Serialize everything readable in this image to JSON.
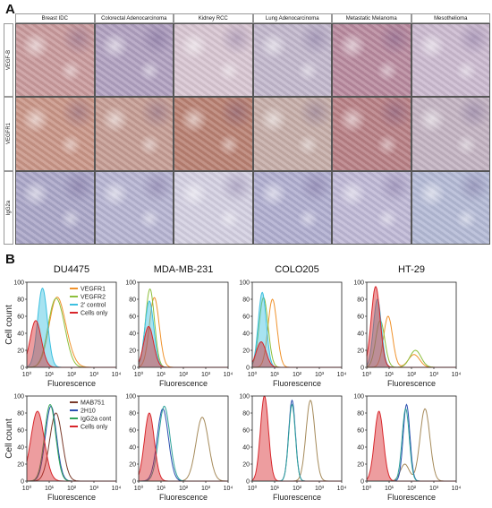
{
  "panel_a": {
    "letter": "A",
    "columns": [
      "Breast IDC",
      "Colorectal Adenocarcinoma",
      "Kidney RCC",
      "Lung Adenocarcinoma",
      "Metastatic Melanoma",
      "Mesothelioma"
    ],
    "rows": [
      "VEGF-B",
      "VEGFR1",
      "IgG2a"
    ],
    "tile_colors": [
      [
        "#c99a9c",
        "#b0a0c0",
        "#d8c6d2",
        "#c2b7cc",
        "#b8899e",
        "#cbbad0"
      ],
      [
        "#c99587",
        "#c59c93",
        "#b98072",
        "#c6ada8",
        "#b87f85",
        "#c3b3c2"
      ],
      [
        "#aaa6c8",
        "#b6b4d2",
        "#d4d0e2",
        "#b0aed0",
        "#bfb8d6",
        "#b4bad6"
      ]
    ]
  },
  "panel_b": {
    "letter": "B",
    "chart_data": [
      {
        "type": "line",
        "title": "DU4475",
        "xlabel": "Fluorescence",
        "ylabel": "Cell count",
        "xscale": "log",
        "xlim": [
          1,
          10000
        ],
        "ylim": [
          0,
          100
        ],
        "x_ticks": [
          "10⁰",
          "10¹",
          "10²",
          "10³",
          "10⁴"
        ],
        "y_ticks": [
          "0",
          "20",
          "40",
          "60",
          "80",
          "100"
        ],
        "legend": "top-right",
        "series": [
          {
            "name": "VEGFR1",
            "color": "#f0922b",
            "filled": false,
            "peaks": [
              {
                "x": 18,
                "y": 58,
                "w": 0.32
              },
              {
                "x": 40,
                "y": 35,
                "w": 0.35
              }
            ]
          },
          {
            "name": "VEGFR2",
            "color": "#8dbf3c",
            "filled": false,
            "peaks": [
              {
                "x": 15,
                "y": 57,
                "w": 0.3
              },
              {
                "x": 35,
                "y": 40,
                "w": 0.3
              }
            ]
          },
          {
            "name": "2' control",
            "color": "#3cc0e0",
            "filled": true,
            "peaks": [
              {
                "x": 5,
                "y": 93,
                "w": 0.22
              }
            ]
          },
          {
            "name": "Cells only",
            "color": "#d8262b",
            "filled": true,
            "peaks": [
              {
                "x": 2.5,
                "y": 55,
                "w": 0.25
              }
            ]
          }
        ]
      },
      {
        "type": "line",
        "title": "MDA-MB-231",
        "xlabel": "Fluorescence",
        "ylabel": "",
        "xscale": "log",
        "xlim": [
          1,
          10000
        ],
        "ylim": [
          0,
          100
        ],
        "x_ticks": [
          "10⁰",
          "10¹",
          "10²",
          "10³",
          "10⁴"
        ],
        "y_ticks": [
          "0",
          "20",
          "40",
          "60",
          "80",
          "100"
        ],
        "series": [
          {
            "name": "VEGFR1",
            "color": "#f0922b",
            "filled": false,
            "peaks": [
              {
                "x": 5,
                "y": 82,
                "w": 0.22
              }
            ]
          },
          {
            "name": "VEGFR2",
            "color": "#8dbf3c",
            "filled": false,
            "peaks": [
              {
                "x": 3.2,
                "y": 92,
                "w": 0.2
              }
            ]
          },
          {
            "name": "2' control",
            "color": "#3cc0e0",
            "filled": true,
            "peaks": [
              {
                "x": 3,
                "y": 78,
                "w": 0.2
              }
            ]
          },
          {
            "name": "Cells only",
            "color": "#d8262b",
            "filled": true,
            "peaks": [
              {
                "x": 2.8,
                "y": 48,
                "w": 0.22
              }
            ]
          }
        ]
      },
      {
        "type": "line",
        "title": "COLO205",
        "xlabel": "Fluorescence",
        "ylabel": "",
        "xscale": "log",
        "xlim": [
          1,
          10000
        ],
        "ylim": [
          0,
          100
        ],
        "x_ticks": [
          "10⁰",
          "10¹",
          "10²",
          "10³",
          "10⁴"
        ],
        "y_ticks": [
          "0",
          "20",
          "40",
          "60",
          "80",
          "100"
        ],
        "series": [
          {
            "name": "VEGFR1",
            "color": "#f0922b",
            "filled": false,
            "peaks": [
              {
                "x": 8,
                "y": 80,
                "w": 0.2
              }
            ]
          },
          {
            "name": "VEGFR2",
            "color": "#8dbf3c",
            "filled": false,
            "peaks": [
              {
                "x": 3.2,
                "y": 82,
                "w": 0.2
              }
            ]
          },
          {
            "name": "2' control",
            "color": "#3cc0e0",
            "filled": true,
            "peaks": [
              {
                "x": 2.8,
                "y": 88,
                "w": 0.18
              }
            ]
          },
          {
            "name": "Cells only",
            "color": "#d8262b",
            "filled": true,
            "peaks": [
              {
                "x": 2.5,
                "y": 30,
                "w": 0.22
              }
            ]
          }
        ]
      },
      {
        "type": "line",
        "title": "HT-29",
        "xlabel": "Fluorescence",
        "ylabel": "",
        "xscale": "log",
        "xlim": [
          1,
          10000
        ],
        "ylim": [
          0,
          100
        ],
        "x_ticks": [
          "10⁰",
          "10¹",
          "10²",
          "10³",
          "10⁴"
        ],
        "y_ticks": [
          "0",
          "20",
          "40",
          "60",
          "80",
          "100"
        ],
        "series": [
          {
            "name": "VEGFR1",
            "color": "#f0922b",
            "filled": false,
            "peaks": [
              {
                "x": 9,
                "y": 60,
                "w": 0.2
              },
              {
                "x": 130,
                "y": 15,
                "w": 0.25
              }
            ]
          },
          {
            "name": "VEGFR2",
            "color": "#8dbf3c",
            "filled": false,
            "peaks": [
              {
                "x": 4,
                "y": 55,
                "w": 0.2
              },
              {
                "x": 150,
                "y": 20,
                "w": 0.25
              }
            ]
          },
          {
            "name": "2' control",
            "color": "#3cc0e0",
            "filled": true,
            "peaks": [
              {
                "x": 3,
                "y": 80,
                "w": 0.18
              }
            ]
          },
          {
            "name": "Cells only",
            "color": "#d8262b",
            "filled": true,
            "peaks": [
              {
                "x": 2.5,
                "y": 95,
                "w": 0.2
              }
            ]
          }
        ]
      },
      {
        "type": "line",
        "title": "",
        "xlabel": "Fluorescence",
        "ylabel": "Cell count",
        "xscale": "log",
        "xlim": [
          1,
          10000
        ],
        "ylim": [
          0,
          100
        ],
        "x_ticks": [
          "10⁰",
          "10¹",
          "10²",
          "10³",
          "10⁴"
        ],
        "y_ticks": [
          "0",
          "20",
          "40",
          "60",
          "80",
          "100"
        ],
        "legend": "top-right",
        "series": [
          {
            "name": "MAB751",
            "color": "#7a3a2a",
            "filled": false,
            "peaks": [
              {
                "x": 20,
                "y": 80,
                "w": 0.28
              }
            ]
          },
          {
            "name": "2H10",
            "color": "#2a4fb0",
            "filled": false,
            "peaks": [
              {
                "x": 12,
                "y": 88,
                "w": 0.25
              }
            ]
          },
          {
            "name": "IgG2a cont",
            "color": "#2fa35a",
            "filled": false,
            "peaks": [
              {
                "x": 11,
                "y": 90,
                "w": 0.25
              }
            ]
          },
          {
            "name": "Cells only",
            "color": "#d8262b",
            "filled": true,
            "peaks": [
              {
                "x": 3,
                "y": 82,
                "w": 0.3
              }
            ]
          }
        ]
      },
      {
        "type": "line",
        "title": "",
        "xlabel": "Fluorescence",
        "ylabel": "",
        "xscale": "log",
        "xlim": [
          1,
          10000
        ],
        "ylim": [
          0,
          100
        ],
        "x_ticks": [
          "10⁰",
          "10¹",
          "10²",
          "10³",
          "10⁴"
        ],
        "y_ticks": [
          "0",
          "20",
          "40",
          "60",
          "80",
          "100"
        ],
        "series": [
          {
            "name": "MAB751",
            "color": "#a58a5a",
            "filled": false,
            "peaks": [
              {
                "x": 700,
                "y": 75,
                "w": 0.28
              }
            ]
          },
          {
            "name": "2H10",
            "color": "#2a4fb0",
            "filled": false,
            "peaks": [
              {
                "x": 12,
                "y": 85,
                "w": 0.25
              }
            ]
          },
          {
            "name": "IgG2a cont",
            "color": "#2fa39a",
            "filled": false,
            "peaks": [
              {
                "x": 14,
                "y": 88,
                "w": 0.25
              }
            ]
          },
          {
            "name": "Cells only",
            "color": "#d8262b",
            "filled": true,
            "peaks": [
              {
                "x": 3,
                "y": 80,
                "w": 0.22
              }
            ]
          }
        ]
      },
      {
        "type": "line",
        "title": "",
        "xlabel": "Fluorescence",
        "ylabel": "",
        "xscale": "log",
        "xlim": [
          1,
          10000
        ],
        "ylim": [
          0,
          100
        ],
        "x_ticks": [
          "10⁰",
          "10¹",
          "10²",
          "10³",
          "10⁴"
        ],
        "y_ticks": [
          "0",
          "20",
          "40",
          "60",
          "80",
          "100"
        ],
        "series": [
          {
            "name": "MAB751",
            "color": "#a58a5a",
            "filled": false,
            "peaks": [
              {
                "x": 400,
                "y": 95,
                "w": 0.2
              }
            ]
          },
          {
            "name": "2H10",
            "color": "#2a4fb0",
            "filled": false,
            "peaks": [
              {
                "x": 60,
                "y": 95,
                "w": 0.15
              }
            ]
          },
          {
            "name": "IgG2a cont",
            "color": "#2fa39a",
            "filled": false,
            "peaks": [
              {
                "x": 60,
                "y": 90,
                "w": 0.15
              }
            ]
          },
          {
            "name": "Cells only",
            "color": "#d8262b",
            "filled": true,
            "peaks": [
              {
                "x": 3.5,
                "y": 100,
                "w": 0.18
              }
            ]
          }
        ]
      },
      {
        "type": "line",
        "title": "",
        "xlabel": "Fluorescence",
        "ylabel": "",
        "xscale": "log",
        "xlim": [
          1,
          10000
        ],
        "ylim": [
          0,
          100
        ],
        "x_ticks": [
          "10⁰",
          "10¹",
          "10²",
          "10³",
          "10⁴"
        ],
        "y_ticks": [
          "0",
          "20",
          "40",
          "60",
          "80",
          "100"
        ],
        "series": [
          {
            "name": "MAB751",
            "color": "#a58a5a",
            "filled": false,
            "peaks": [
              {
                "x": 400,
                "y": 85,
                "w": 0.22
              },
              {
                "x": 50,
                "y": 20,
                "w": 0.2
              }
            ]
          },
          {
            "name": "2H10",
            "color": "#2a4fb0",
            "filled": false,
            "peaks": [
              {
                "x": 60,
                "y": 90,
                "w": 0.15
              }
            ]
          },
          {
            "name": "IgG2a cont",
            "color": "#2fa39a",
            "filled": false,
            "peaks": [
              {
                "x": 55,
                "y": 85,
                "w": 0.16
              }
            ]
          },
          {
            "name": "Cells only",
            "color": "#d8262b",
            "filled": true,
            "peaks": [
              {
                "x": 3.5,
                "y": 82,
                "w": 0.2
              }
            ]
          }
        ]
      }
    ]
  }
}
